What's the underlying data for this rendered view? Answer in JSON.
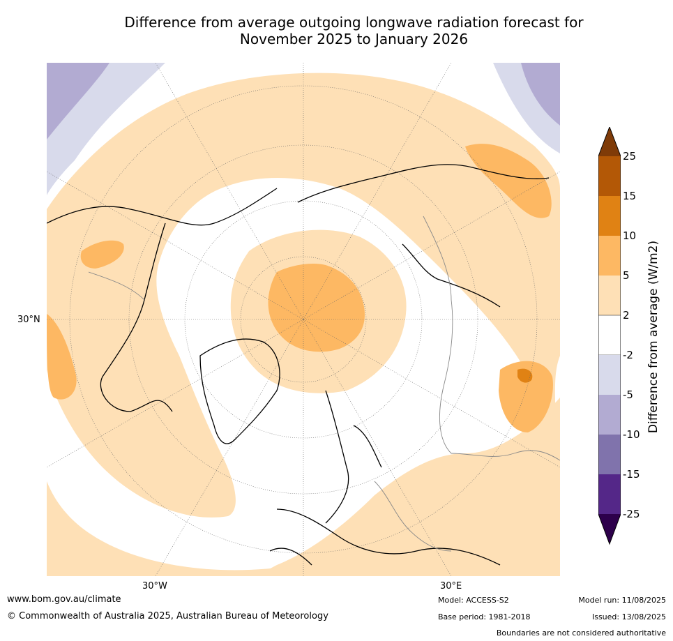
{
  "title_line1": "Difference from average outgoing longwave radiation forecast for",
  "title_line2": "November 2025 to January 2026",
  "map": {
    "projection": "north-polar-stereographic",
    "lat_label": "30°N",
    "lon_labels": [
      "30°W",
      "30°E"
    ],
    "palette": {
      "above_25": "#7f3b08",
      "15_25": "#b35806",
      "10_15": "#e08214",
      "5_10": "#fdb863",
      "2_5": "#fee0b6",
      "neutral": "#ffffff",
      "-5_-2": "#d8daeb",
      "-10_-5": "#b2abd2",
      "-15_-10": "#8073ac",
      "-25_-15": "#542788",
      "below_-25": "#2d004b"
    }
  },
  "colorbar": {
    "title": "Difference from average (W/m2)",
    "ticks": [
      "25",
      "15",
      "10",
      "5",
      "2",
      "-2",
      "-5",
      "-10",
      "-15",
      "-25"
    ]
  },
  "footer": {
    "website": "www.bom.gov.au/climate",
    "copyright": "© Commonwealth of Australia 2025, Australian Bureau of Meteorology",
    "model": "Model: ACCESS-S2",
    "base_period": "Base period: 1981-2018",
    "model_run": "Model run: 11/08/2025",
    "issued": "Issued: 13/08/2025",
    "boundaries_note": "Boundaries are not considered authoritative"
  }
}
